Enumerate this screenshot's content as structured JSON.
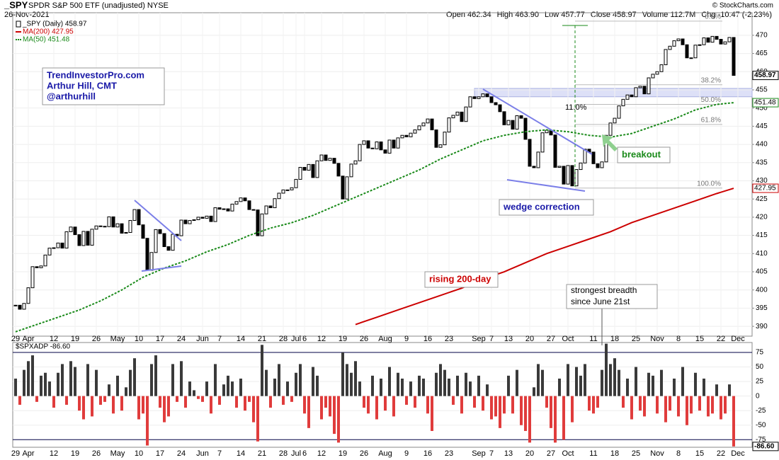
{
  "chart_data": [
    {
      "type": "candlestick",
      "title": "_SPY",
      "subtitle": "SPDR S&P 500 ETF (unadjusted) NYSE",
      "date": "26-Nov-2021",
      "quote": [
        "Open 462.34",
        "High 463.90",
        "Low 457.77",
        "Close 458.97",
        "Volume 112.7M",
        "Chg -10.47 (-2.23%)"
      ],
      "copyright": "© StockCharts.com",
      "xticks": [
        {
          "value": 0,
          "label": "29"
        },
        {
          "value": 3,
          "label": "Apr"
        },
        {
          "value": 9,
          "label": "12"
        },
        {
          "value": 14,
          "label": "19"
        },
        {
          "value": 19,
          "label": "26"
        },
        {
          "value": 24,
          "label": "May"
        },
        {
          "value": 29,
          "label": "10"
        },
        {
          "value": 34,
          "label": "17"
        },
        {
          "value": 39,
          "label": "24"
        },
        {
          "value": 44,
          "label": "Jun"
        },
        {
          "value": 48,
          "label": "7"
        },
        {
          "value": 53,
          "label": "14"
        },
        {
          "value": 58,
          "label": "21"
        },
        {
          "value": 63,
          "label": "28"
        },
        {
          "value": 66,
          "label": "Jul"
        },
        {
          "value": 68,
          "label": "6"
        },
        {
          "value": 72,
          "label": "12"
        },
        {
          "value": 77,
          "label": "19"
        },
        {
          "value": 82,
          "label": "26"
        },
        {
          "value": 87,
          "label": "Aug"
        },
        {
          "value": 92,
          "label": "9"
        },
        {
          "value": 97,
          "label": "16"
        },
        {
          "value": 102,
          "label": "23"
        },
        {
          "value": 109,
          "label": "Sep"
        },
        {
          "value": 112,
          "label": "7"
        },
        {
          "value": 116,
          "label": "13"
        },
        {
          "value": 121,
          "label": "20"
        },
        {
          "value": 126,
          "label": "27"
        },
        {
          "value": 130,
          "label": "Oct"
        },
        {
          "value": 136,
          "label": "11"
        },
        {
          "value": 141,
          "label": "18"
        },
        {
          "value": 146,
          "label": "25"
        },
        {
          "value": 151,
          "label": "Nov"
        },
        {
          "value": 156,
          "label": "8"
        },
        {
          "value": 161,
          "label": "15"
        },
        {
          "value": 166,
          "label": "22"
        },
        {
          "value": 170,
          "label": "Dec"
        }
      ],
      "ylim": [
        387.3,
        476.2
      ],
      "yticks": [
        390,
        395,
        400,
        405,
        410,
        415,
        420,
        425,
        430,
        435,
        440,
        445,
        450,
        455,
        460,
        465,
        470
      ],
      "grid": true,
      "series": [
        {
          "name": "_SPY (Daily) 458.97",
          "color": "#000000",
          "last_label": "458.97",
          "values": [
            395.8,
            394.7,
            396.3,
            400.6,
            406.4,
            406.1,
            406.6,
            409.6,
            411.5,
            411.6,
            412.9,
            411.5,
            416.0,
            417.3,
            415.2,
            412.2,
            416.1,
            412.3,
            416.7,
            417.6,
            417.5,
            417.4,
            420.1,
            417.3,
            418.2,
            415.6,
            415.8,
            419.1,
            422.1,
            417.9,
            414.2,
            405.4,
            410.3,
            416.6,
            415.5,
            411.9,
            410.9,
            415.3,
            414.9,
            419.2,
            418.2,
            419.1,
            419.3,
            420.0,
            419.7,
            420.3,
            418.8,
            422.6,
            422.2,
            422.3,
            421.7,
            423.6,
            424.3,
            425.3,
            424.5,
            422.1,
            422.0,
            414.9,
            420.9,
            423.1,
            422.6,
            425.1,
            426.6,
            427.5,
            427.5,
            428.1,
            430.4,
            433.7,
            432.9,
            434.5,
            430.9,
            435.5,
            437.1,
            435.6,
            436.2,
            434.8,
            431.3,
            425.0,
            431.1,
            434.6,
            435.5,
            440.0,
            441.0,
            439.0,
            438.8,
            440.7,
            438.5,
            437.6,
            441.2,
            439.0,
            441.8,
            442.5,
            442.1,
            443.1,
            444.0,
            445.1,
            445.9,
            447.0,
            444.0,
            439.2,
            439.9,
            443.4,
            447.3,
            448.0,
            448.9,
            446.3,
            450.3,
            453.1,
            452.6,
            453.1,
            453.9,
            453.1,
            451.5,
            450.9,
            449.0,
            445.4,
            446.6,
            444.2,
            447.9,
            447.2,
            441.4,
            434.0,
            433.6,
            437.9,
            443.2,
            443.9,
            442.6,
            433.7,
            434.0,
            429.1,
            434.2,
            428.6,
            433.1,
            434.9,
            438.7,
            437.9,
            434.7,
            433.6,
            435.2,
            442.5,
            445.9,
            447.2,
            450.6,
            452.4,
            453.6,
            453.1,
            455.6,
            456.0,
            453.9,
            458.3,
            459.3,
            460.0,
            461.9,
            466.1,
            467.0,
            468.5,
            469.0,
            467.4,
            463.8,
            463.8,
            467.3,
            467.4,
            469.3,
            468.1,
            469.7,
            468.9,
            467.6,
            468.2,
            469.4,
            458.97
          ]
        },
        {
          "name": "MA(200) 427.95",
          "color": "#cc0000",
          "last_label": "427.95",
          "values": [
            null,
            null,
            null,
            null,
            null,
            null,
            null,
            null,
            null,
            null,
            null,
            null,
            null,
            null,
            null,
            null,
            390.5,
            392.5,
            394.5,
            396.5,
            398.5,
            400.5,
            403,
            405,
            407.5,
            410,
            412,
            414,
            416,
            418.5,
            420.5,
            422.5,
            424.5,
            426.5,
            427.95
          ]
        },
        {
          "name": "MA(50) 451.48",
          "color": "#1a8a1a",
          "last_label": "451.48",
          "values": [
            388.5,
            390.5,
            392.5,
            394.5,
            397,
            400,
            403.5,
            406,
            408,
            410.5,
            412.5,
            415,
            417,
            418.5,
            420.5,
            423,
            425.5,
            428,
            430.5,
            433,
            436,
            438.5,
            441,
            442.5,
            443.5,
            444,
            443.5,
            442.5,
            442,
            443,
            445,
            447,
            449.5,
            451,
            451.48
          ]
        }
      ],
      "fib_levels": [
        {
          "value": 473.9,
          "label": "0.0%"
        },
        {
          "value": 456.4,
          "label": "38.2%"
        },
        {
          "value": 451.0,
          "label": "50.0%"
        },
        {
          "value": 445.5,
          "label": "61.8%"
        },
        {
          "value": 428.0,
          "label": "100.0%"
        }
      ],
      "zone": [
        453.1,
        455.4
      ],
      "annotations": {
        "credit": [
          "TrendInvestorPro.com",
          "Arthur Hill, CMT",
          "@arthurhill"
        ],
        "move": "11.0%",
        "wedge": "wedge correction",
        "breakout": "breakout",
        "ma200": "rising 200-day",
        "breadth": [
          "strongest breadth",
          "since June 21st"
        ]
      }
    },
    {
      "type": "bar",
      "ylim": [
        -88,
        92
      ],
      "yticks": [
        75,
        50,
        25,
        0,
        -25,
        -50,
        -75
      ],
      "series": [
        {
          "name": "$SPXADP -86.60",
          "color": "#3a3a3a",
          "negative_color": "#e03c3c",
          "last_label": "-86.60",
          "values": [
            30,
            -15,
            45,
            60,
            70,
            -10,
            35,
            40,
            25,
            -20,
            40,
            55,
            -15,
            60,
            50,
            -25,
            -40,
            55,
            -35,
            45,
            -15,
            -10,
            20,
            -30,
            35,
            -25,
            15,
            45,
            65,
            -40,
            -30,
            -85,
            55,
            70,
            -20,
            -45,
            -35,
            55,
            -10,
            60,
            -20,
            25,
            10,
            -5,
            -10,
            25,
            -30,
            55,
            -15,
            20,
            35,
            25,
            -20,
            30,
            -25,
            -10,
            -45,
            -78,
            88,
            45,
            -20,
            30,
            55,
            -15,
            25,
            -10,
            40,
            55,
            -30,
            -55,
            50,
            35,
            -40,
            -20,
            -35,
            -65,
            -80,
            75,
            55,
            40,
            60,
            25,
            -20,
            -30,
            35,
            -40,
            30,
            -25,
            50,
            -35,
            40,
            30,
            -15,
            25,
            -20,
            35,
            30,
            -30,
            -60,
            40,
            55,
            45,
            30,
            -15,
            35,
            -30,
            40,
            25,
            -20,
            35,
            -25,
            20,
            -40,
            -35,
            -55,
            -30,
            35,
            -30,
            45,
            -50,
            -60,
            -80,
            15,
            55,
            45,
            -20,
            -55,
            -80,
            30,
            -75,
            55,
            -45,
            50,
            35,
            55,
            -25,
            -30,
            -20,
            45,
            90,
            55,
            65,
            45,
            -20,
            30,
            -40,
            50,
            -25,
            -35,
            40,
            35,
            -30,
            45,
            -45,
            -25,
            30,
            -35,
            50,
            -50,
            -30,
            40,
            -25,
            30,
            -35,
            -30,
            20,
            -40,
            -30,
            20,
            -86.6
          ]
        }
      ]
    }
  ]
}
